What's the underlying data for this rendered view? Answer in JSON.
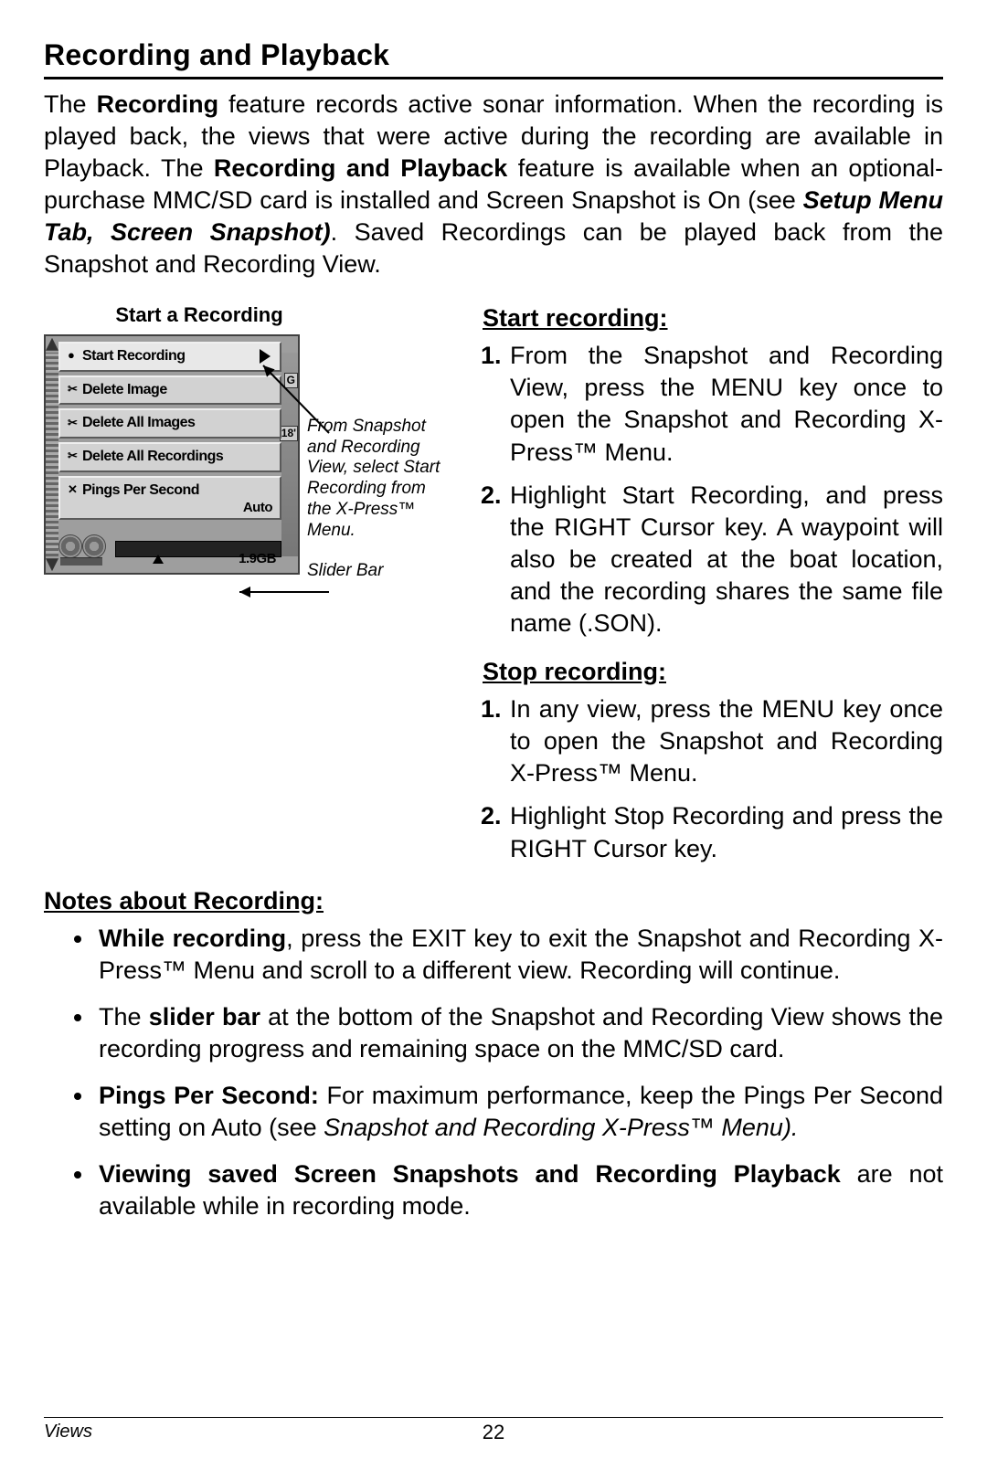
{
  "heading": "Recording and Playback",
  "intro_html": "The <b>Recording</b> feature records active sonar information. When the recording is played back, the views that were active during the recording are available in Playback. The <b>Recording and Playback</b> feature is available when an optional-purchase MMC/SD card is installed and Screen Snapshot is On (see <span class='bi'>Setup Menu Tab, Screen Snapshot)</span>. Saved Recordings can be played back from the Snapshot and Recording View.",
  "figure": {
    "caption": "Start a Recording",
    "menu_items": [
      {
        "label": "Start Recording",
        "selected": true,
        "icon": "●",
        "play": true
      },
      {
        "label": "Delete Image",
        "icon": "✂"
      },
      {
        "label": "Delete All Images",
        "icon": "✂"
      },
      {
        "label": "Delete All Recordings",
        "icon": "✂"
      },
      {
        "label": "Pings Per Second",
        "icon": "✕",
        "value": "Auto"
      }
    ],
    "size_label": "1.9GB",
    "depth_label": "18'",
    "g_label": "G",
    "callout_main": "From Snapshot and Recording View, select Start Recording from the X-Press™ Menu.",
    "callout_slider": "Slider Bar"
  },
  "start_heading": "Start recording:",
  "start_steps": [
    "From the Snapshot and Recording View, press the MENU key once to open the Snapshot and Recording X-Press™ Menu.",
    "Highlight Start Recording, and press the RIGHT Cursor key. A waypoint will also be created at the boat location, and the recording shares the same file name (.SON)."
  ],
  "stop_heading": "Stop recording:",
  "stop_steps": [
    "In any view, press the MENU key once to open the Snapshot and Recording X-Press™ Menu.",
    "Highlight Stop Recording and press the RIGHT Cursor key."
  ],
  "notes_heading": "Notes about Recording:",
  "notes_html": [
    "<b>While recording</b>, press the EXIT key to exit the Snapshot and Recording X-Press™ Menu and scroll to a different view. Recording will continue.",
    "The <b>slider bar</b> at the bottom of the Snapshot and Recording View shows the recording progress and remaining space on the MMC/SD card.",
    "<b>Pings Per Second:</b> For maximum performance, keep the Pings Per Second setting on Auto (see <i>Snapshot and Recording X-Press™ Menu).</i>",
    "<b>Viewing saved Screen Snapshots and Recording Playback</b> are not available while in recording mode."
  ],
  "footer": {
    "section": "Views",
    "page": "22"
  }
}
